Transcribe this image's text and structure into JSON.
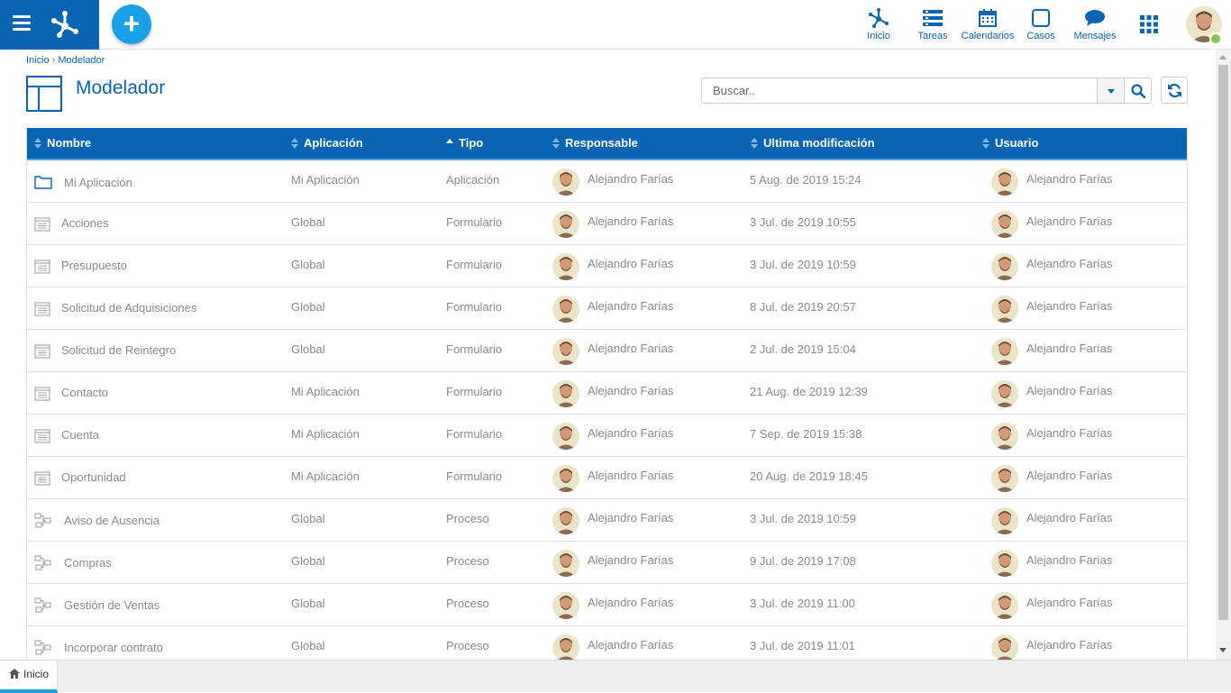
{
  "header": {
    "nav": [
      {
        "key": "inicio",
        "label": "Inicio",
        "icon": "modeler-icon"
      },
      {
        "key": "tareas",
        "label": "Tareas",
        "icon": "tasks-icon"
      },
      {
        "key": "calendarios",
        "label": "Calendarios",
        "icon": "calendar-icon"
      },
      {
        "key": "casos",
        "label": "Casos",
        "icon": "cases-icon"
      },
      {
        "key": "mensajes",
        "label": "Mensajes",
        "icon": "chat-icon"
      }
    ],
    "status_color": "#8bc34a"
  },
  "breadcrumb": {
    "home": "Inicio",
    "separator": "›",
    "current": "Modelador"
  },
  "page": {
    "title": "Modelador"
  },
  "search": {
    "placeholder": "Buscar.."
  },
  "table": {
    "columns": [
      "Nombre",
      "Aplicación",
      "Tipo",
      "Responsable",
      "Ultima modificación",
      "Usuario"
    ],
    "sorted_column": "Tipo",
    "sort_direction": "asc",
    "rows": [
      {
        "icon": "folder-icon",
        "name": "Mi Aplicación",
        "app": "Mi Aplicación",
        "type": "Aplicación",
        "owner": "Alejandro Farías",
        "modified": "5 Aug. de 2019 15:24",
        "user": "Alejandro Farías"
      },
      {
        "icon": "form-icon",
        "name": "Acciones",
        "app": "Global",
        "type": "Formulario",
        "owner": "Alejandro Farías",
        "modified": "3 Jul. de 2019 10:55",
        "user": "Alejandro Farías"
      },
      {
        "icon": "form-icon",
        "name": "Presupuesto",
        "app": "Global",
        "type": "Formulario",
        "owner": "Alejandro Farías",
        "modified": "3 Jul. de 2019 10:59",
        "user": "Alejandro Farías"
      },
      {
        "icon": "form-icon",
        "name": "Solicitud de Adquisiciones",
        "app": "Global",
        "type": "Formulario",
        "owner": "Alejandro Farías",
        "modified": "8 Jul. de 2019 20:57",
        "user": "Alejandro Farías"
      },
      {
        "icon": "form-icon",
        "name": "Solicitud de Reintegro",
        "app": "Global",
        "type": "Formulario",
        "owner": "Alejandro Farías",
        "modified": "2 Jul. de 2019 15:04",
        "user": "Alejandro Farías"
      },
      {
        "icon": "form-icon",
        "name": "Contacto",
        "app": "Mi Aplicación",
        "type": "Formulario",
        "owner": "Alejandro Farías",
        "modified": "21 Aug. de 2019 12:39",
        "user": "Alejandro Farías"
      },
      {
        "icon": "form-icon",
        "name": "Cuenta",
        "app": "Mi Aplicación",
        "type": "Formulario",
        "owner": "Alejandro Farías",
        "modified": "7 Sep. de 2019 15:38",
        "user": "Alejandro Farías"
      },
      {
        "icon": "form-icon",
        "name": "Oportunidad",
        "app": "Mi Aplicación",
        "type": "Formulario",
        "owner": "Alejandro Farías",
        "modified": "20 Aug. de 2019 18:45",
        "user": "Alejandro Farías"
      },
      {
        "icon": "process-icon",
        "name": "Aviso de Ausencia",
        "app": "Global",
        "type": "Proceso",
        "owner": "Alejandro Farías",
        "modified": "3 Jul. de 2019 10:59",
        "user": "Alejandro Farías"
      },
      {
        "icon": "process-icon",
        "name": "Compras",
        "app": "Global",
        "type": "Proceso",
        "owner": "Alejandro Farías",
        "modified": "9 Jul. de 2019 17:08",
        "user": "Alejandro Farías"
      },
      {
        "icon": "process-icon",
        "name": "Gestión de Ventas",
        "app": "Global",
        "type": "Proceso",
        "owner": "Alejandro Farías",
        "modified": "3 Jul. de 2019 11:00",
        "user": "Alejandro Farías"
      },
      {
        "icon": "process-icon",
        "name": "Incorporar contrato",
        "app": "Global",
        "type": "Proceso",
        "owner": "Alejandro Farías",
        "modified": "3 Jul. de 2019 11:01",
        "user": "Alejandro Farías"
      }
    ]
  },
  "bottom_tabs": [
    {
      "label": "Inicio",
      "icon": "home-icon"
    }
  ],
  "colors": {
    "brand": "#0a64b4",
    "accent": "#1aa0e6",
    "text_muted": "#8a8a8a"
  }
}
